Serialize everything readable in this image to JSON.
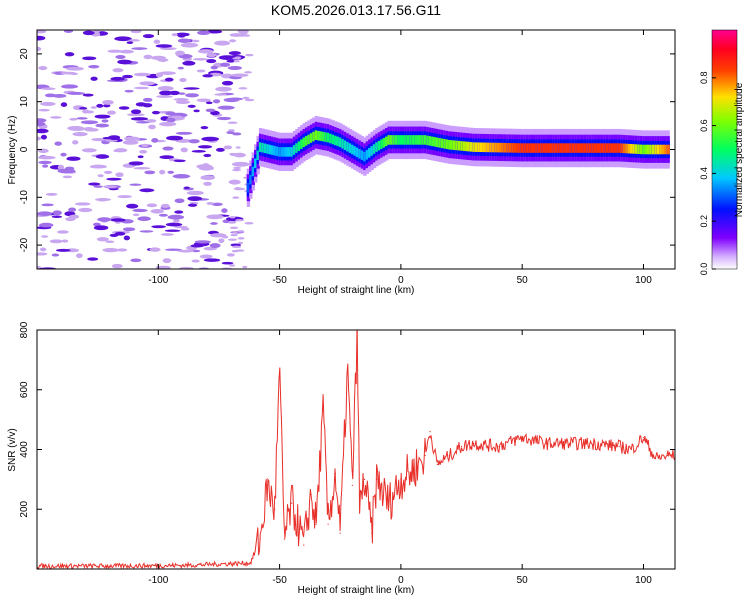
{
  "title": "KOM5.2026.013.17.56.G11",
  "colors": {
    "snr_line": "#e8302a",
    "axis": "#000000",
    "speckle_light": "#c9a6f0",
    "speckle_mid": "#a070e8",
    "speckle_dark": "#5a10d8"
  },
  "chart_data": [
    {
      "type": "heatmap",
      "title": "",
      "xlabel": "Height of straight line (km)",
      "ylabel": "Frequency (Hz)",
      "xlim": [
        -150,
        113
      ],
      "ylim": [
        -25,
        25
      ],
      "xticks": [
        -100,
        -50,
        0,
        50,
        100
      ],
      "yticks": [
        -20,
        -10,
        0,
        10,
        20
      ],
      "colorbar": {
        "label": "Normalized spectral amplitude",
        "range": [
          0.0,
          1.0
        ],
        "ticks": [
          0.0,
          0.2,
          0.4,
          0.6,
          0.8
        ],
        "colormap": "rainbow (white-violet-blue-cyan-green-yellow-red-magenta)"
      },
      "noise_region_km": [
        -150,
        -65
      ],
      "signal_track": {
        "description": "Doppler track of the signal, frequency vs height",
        "x_km": [
          -63,
          -58,
          -50,
          -45,
          -40,
          -35,
          -30,
          -25,
          -20,
          -15,
          -10,
          -5,
          0,
          10,
          20,
          30,
          50,
          70,
          90,
          100,
          110
        ],
        "freq_hz": [
          -8,
          0.5,
          -0.5,
          -0.5,
          1.5,
          3,
          2.5,
          1.5,
          0,
          -1.5,
          0.5,
          2,
          2,
          2,
          1,
          0.5,
          0.3,
          0.3,
          0.3,
          0,
          0
        ],
        "amplitude": [
          0.3,
          0.45,
          0.35,
          0.4,
          0.55,
          0.6,
          0.5,
          0.45,
          0.4,
          0.35,
          0.45,
          0.6,
          0.5,
          0.55,
          0.6,
          0.7,
          0.85,
          0.85,
          0.85,
          0.6,
          0.8
        ]
      }
    },
    {
      "type": "line",
      "title": "",
      "xlabel": "Height of straight line (km)",
      "ylabel": "SNR (v/v)",
      "xlim": [
        -150,
        113
      ],
      "ylim": [
        0,
        800
      ],
      "xticks": [
        -100,
        -50,
        0,
        50,
        100
      ],
      "yticks": [
        200,
        400,
        600,
        800
      ],
      "series": [
        {
          "x": [
            -150,
            -120,
            -90,
            -62,
            -58,
            -55,
            -52,
            -50,
            -48,
            -45,
            -40,
            -37,
            -35,
            -32,
            -30,
            -27,
            -25,
            -22,
            -20,
            -18,
            -17,
            -15,
            -12,
            -10,
            -5,
            0,
            5,
            10,
            12,
            15,
            20,
            25,
            30,
            40,
            50,
            60,
            70,
            80,
            90,
            95,
            100,
            105,
            110,
            113
          ],
          "y": [
            10,
            10,
            12,
            20,
            100,
            280,
            200,
            660,
            100,
            220,
            80,
            250,
            150,
            530,
            150,
            320,
            120,
            670,
            280,
            790,
            200,
            300,
            120,
            300,
            220,
            300,
            330,
            380,
            460,
            350,
            380,
            410,
            420,
            410,
            440,
            420,
            420,
            420,
            410,
            400,
            440,
            370,
            380,
            380
          ]
        }
      ]
    }
  ]
}
